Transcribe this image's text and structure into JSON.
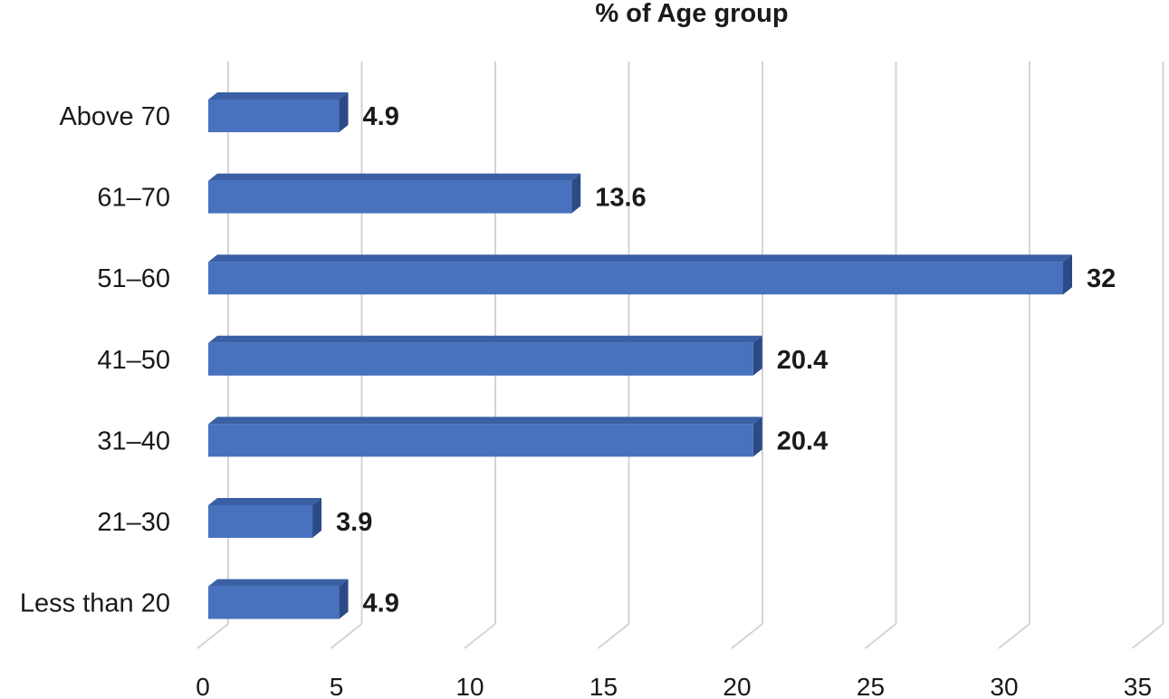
{
  "chart_data": {
    "type": "bar",
    "orientation": "horizontal",
    "title": "% of Age group",
    "xlabel": "",
    "ylabel": "",
    "categories": [
      "Above 70",
      "61–70",
      "51–60",
      "41–50",
      "31–40",
      "21–30",
      "Less than 20"
    ],
    "values": [
      4.9,
      13.6,
      32,
      20.4,
      20.4,
      3.9,
      4.9
    ],
    "value_labels": [
      "4.9",
      "13.6",
      "32",
      "20.4",
      "20.4",
      "3.9",
      "4.9"
    ],
    "xlim": [
      0,
      35
    ],
    "x_ticks": [
      "0",
      "5",
      "10",
      "15",
      "20",
      "25",
      "30",
      "35"
    ],
    "grid": true,
    "legend": "none",
    "style": "3d",
    "colors": {
      "bar_front": "#4872be",
      "bar_top": "#3a5fa5",
      "bar_side": "#2c4a86",
      "grid": "#d4d4d4"
    }
  }
}
